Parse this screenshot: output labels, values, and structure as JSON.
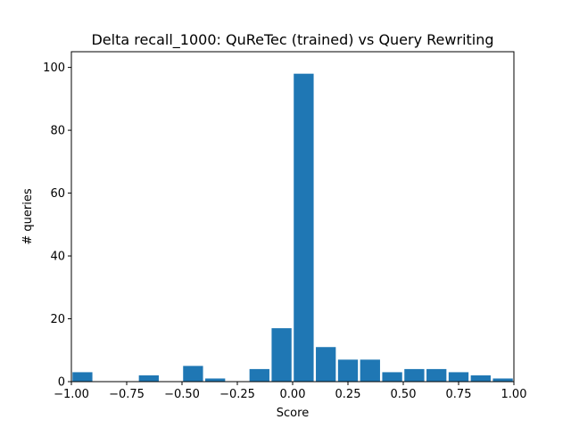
{
  "chart_data": {
    "type": "bar",
    "title": "Delta recall_1000: QuReTec (trained) vs Query Rewriting",
    "xlabel": "Score",
    "ylabel": "# queries",
    "xlim": [
      -1.0,
      1.0
    ],
    "ylim": [
      0,
      105
    ],
    "bin_width": 0.1,
    "bins": [
      {
        "start": -1.0,
        "end": -0.9,
        "count": 3
      },
      {
        "start": -0.9,
        "end": -0.8,
        "count": 0
      },
      {
        "start": -0.8,
        "end": -0.7,
        "count": 0
      },
      {
        "start": -0.7,
        "end": -0.6,
        "count": 2
      },
      {
        "start": -0.6,
        "end": -0.5,
        "count": 0
      },
      {
        "start": -0.5,
        "end": -0.4,
        "count": 5
      },
      {
        "start": -0.4,
        "end": -0.3,
        "count": 1
      },
      {
        "start": -0.3,
        "end": -0.2,
        "count": 0
      },
      {
        "start": -0.2,
        "end": -0.1,
        "count": 4
      },
      {
        "start": -0.1,
        "end": 0.0,
        "count": 17
      },
      {
        "start": 0.0,
        "end": 0.1,
        "count": 98
      },
      {
        "start": 0.1,
        "end": 0.2,
        "count": 11
      },
      {
        "start": 0.2,
        "end": 0.3,
        "count": 7
      },
      {
        "start": 0.3,
        "end": 0.4,
        "count": 7
      },
      {
        "start": 0.4,
        "end": 0.5,
        "count": 3
      },
      {
        "start": 0.5,
        "end": 0.6,
        "count": 4
      },
      {
        "start": 0.6,
        "end": 0.7,
        "count": 4
      },
      {
        "start": 0.7,
        "end": 0.8,
        "count": 3
      },
      {
        "start": 0.8,
        "end": 0.9,
        "count": 2
      },
      {
        "start": 0.9,
        "end": 1.0,
        "count": 1
      }
    ],
    "x_ticks": [
      -1.0,
      -0.75,
      -0.5,
      -0.25,
      0.0,
      0.25,
      0.5,
      0.75,
      1.0
    ],
    "x_tick_labels": [
      "−1.00",
      "−0.75",
      "−0.50",
      "−0.25",
      "0.00",
      "0.25",
      "0.50",
      "0.75",
      "1.00"
    ],
    "y_ticks": [
      0,
      20,
      40,
      60,
      80,
      100
    ],
    "y_tick_labels": [
      "0",
      "20",
      "40",
      "60",
      "80",
      "100"
    ],
    "bar_color": "#1f77b4",
    "grid": false,
    "legend": "none"
  }
}
